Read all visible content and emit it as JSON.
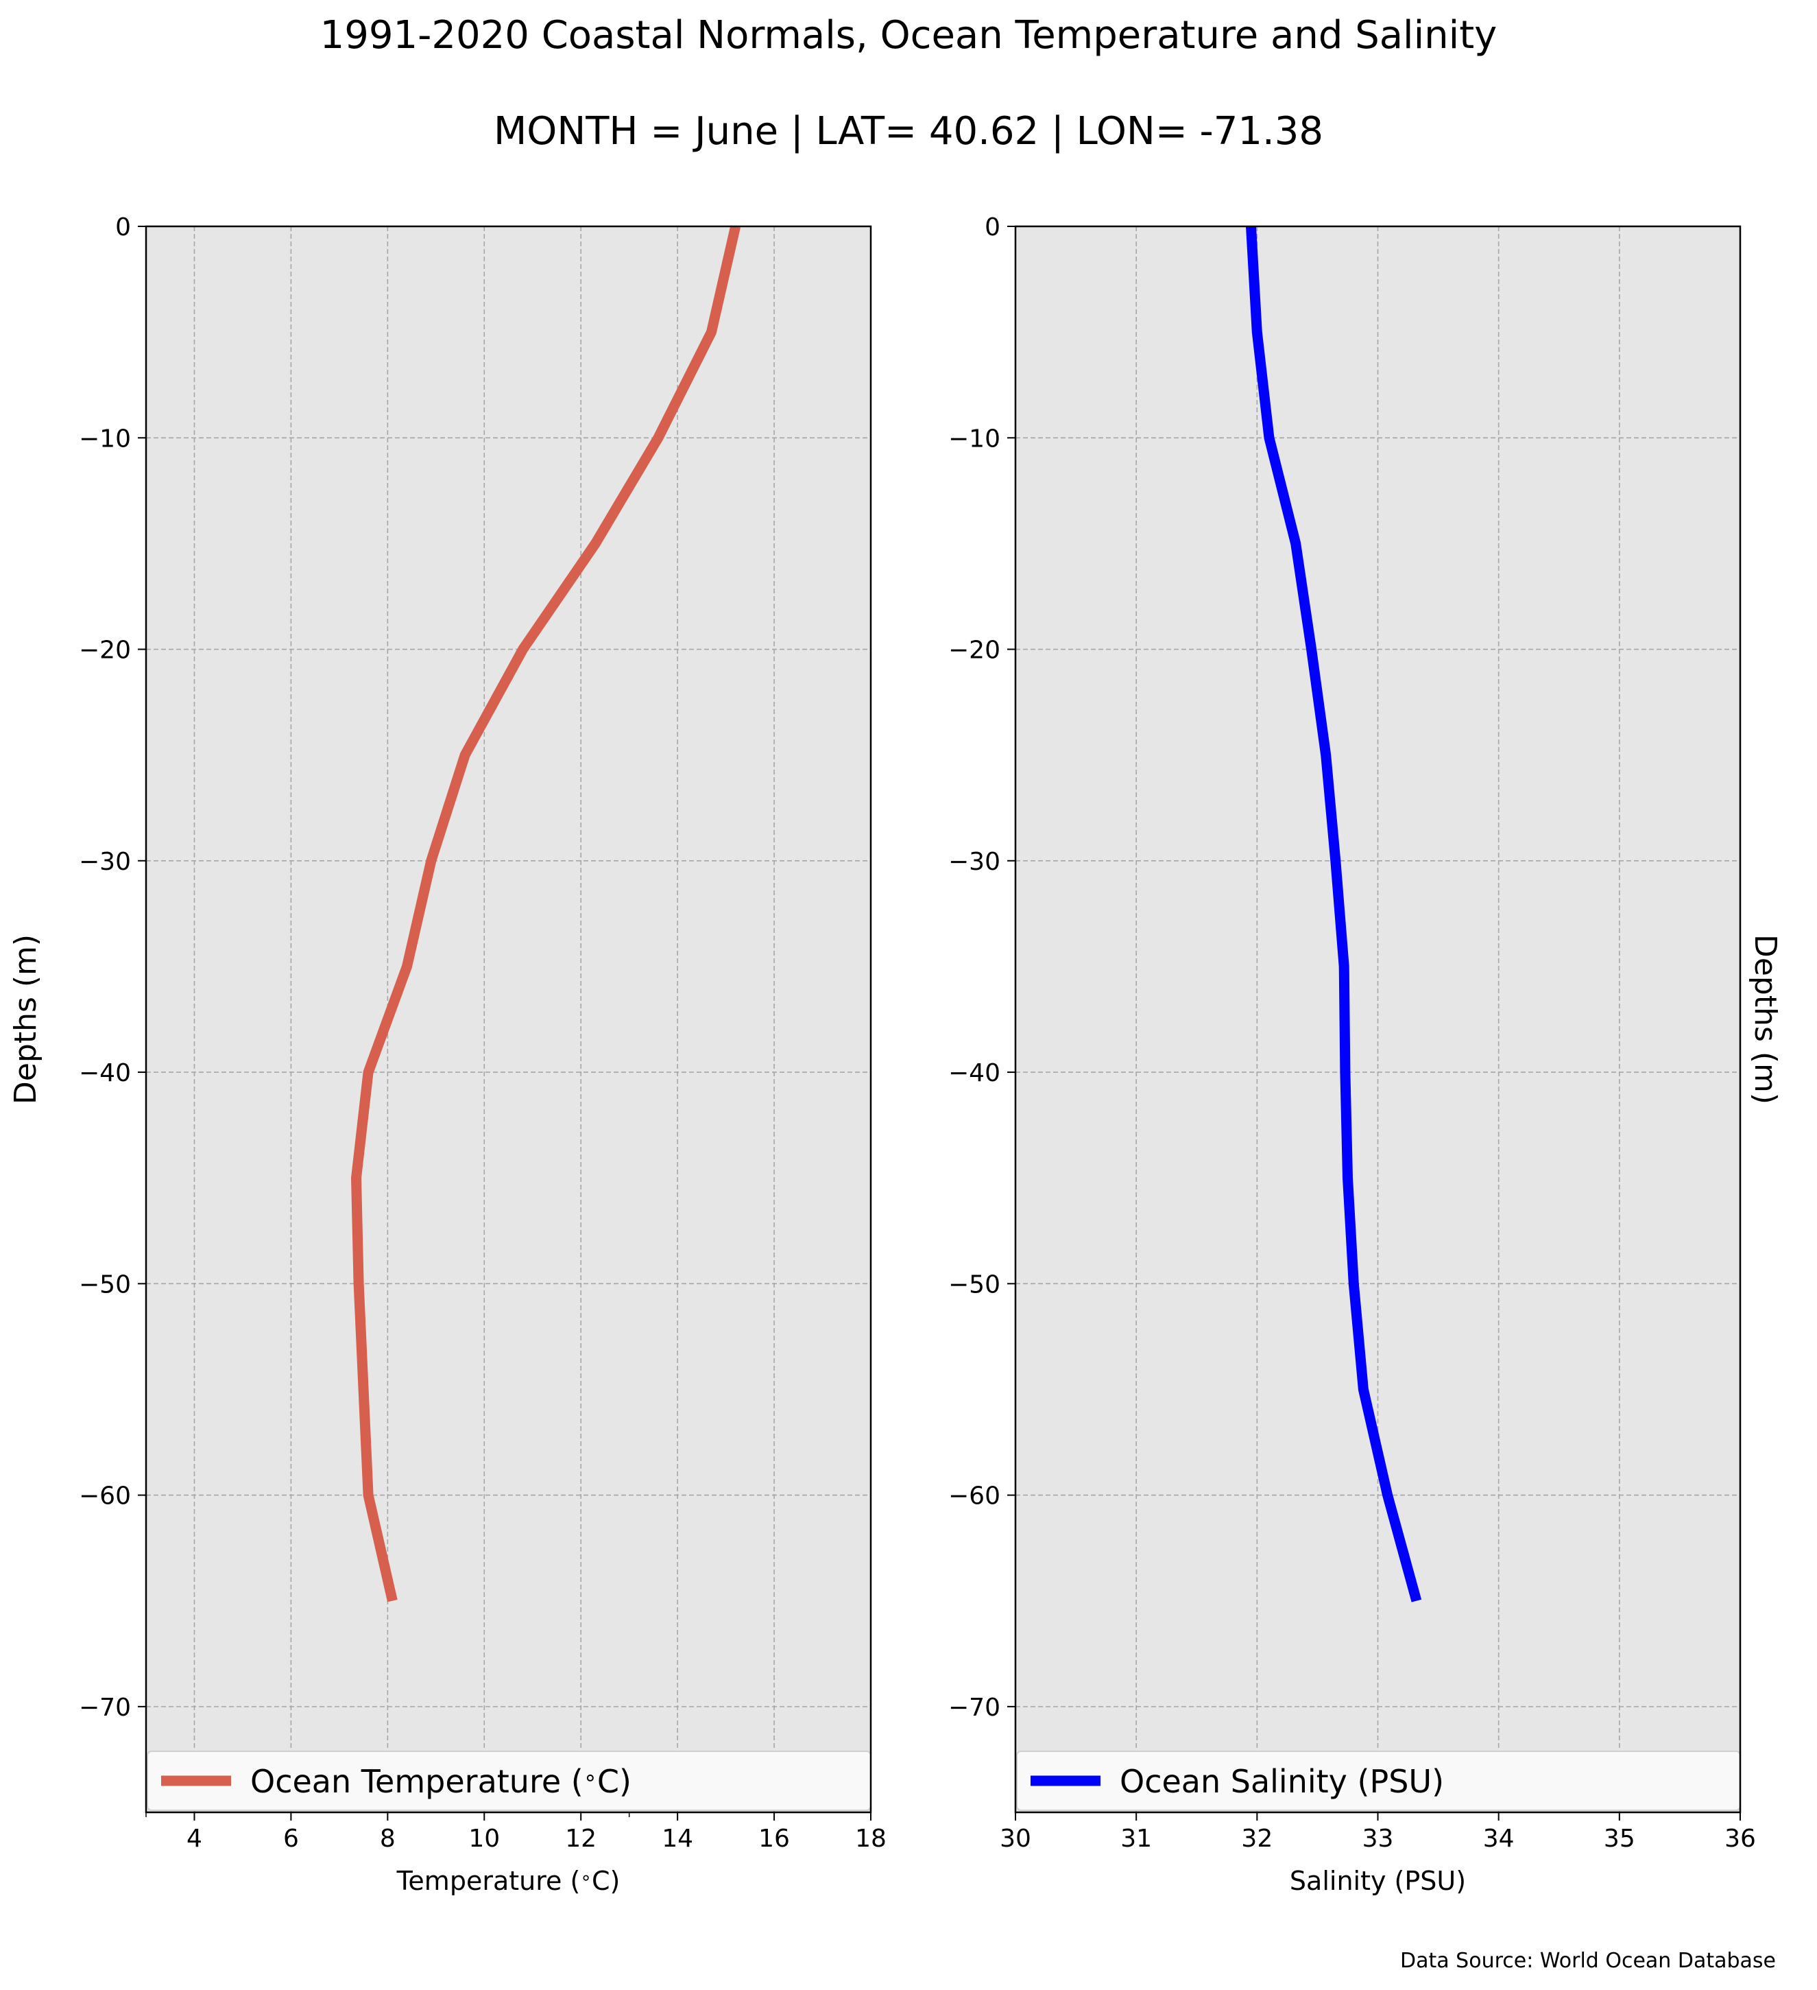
{
  "figure": {
    "title": "1991-2020 Coastal Normals, Ocean Temperature and Salinity",
    "subtitle": "MONTH = June | LAT= 40.62 | LON= -71.38",
    "source_note": "Data Source: World Ocean Database"
  },
  "colors": {
    "plot_background": "#e6e6e6",
    "grid": "#a6a6a6",
    "temperature_line": "#d75f4e",
    "salinity_line": "#0000ff"
  },
  "chart_data": [
    {
      "type": "line",
      "orientation": "vertical-profile",
      "xlabel": "Temperature ($^\\circ$C)",
      "ylabel": "Depths (m)",
      "xlim": [
        3,
        18
      ],
      "ylim": [
        -75,
        0
      ],
      "xticks": [
        4,
        6,
        8,
        10,
        12,
        14,
        16,
        18
      ],
      "xtick_labels": [
        "4",
        "6",
        "8",
        "10",
        "12",
        "14",
        "16",
        "18"
      ],
      "yticks": [
        0,
        -10,
        -20,
        -30,
        -40,
        -50,
        -60,
        -70
      ],
      "ytick_labels": [
        "0",
        "−10",
        "−20",
        "−30",
        "−40",
        "−50",
        "−60",
        "−70"
      ],
      "grid": true,
      "legend_position": "bottom",
      "series": [
        {
          "name": "Ocean Temperature ($^\\circ$C)",
          "x": [
            15.2,
            14.7,
            13.6,
            12.3,
            10.8,
            9.6,
            8.9,
            8.4,
            7.6,
            7.35,
            7.4,
            7.5,
            7.6,
            8.1
          ],
          "y": [
            0,
            -5,
            -10,
            -15,
            -20,
            -25,
            -30,
            -35,
            -40,
            -45,
            -50,
            -55,
            -60,
            -65
          ]
        }
      ]
    },
    {
      "type": "line",
      "orientation": "vertical-profile",
      "xlabel": "Salinity (PSU)",
      "ylabel": "Depths (m)",
      "xlim": [
        30,
        36
      ],
      "ylim": [
        -75,
        0
      ],
      "xticks": [
        30,
        31,
        32,
        33,
        34,
        35,
        36
      ],
      "xtick_labels": [
        "30",
        "31",
        "32",
        "33",
        "34",
        "35",
        "36"
      ],
      "yticks": [
        0,
        -10,
        -20,
        -30,
        -40,
        -50,
        -60,
        -70
      ],
      "ytick_labels": [
        "0",
        "−10",
        "−20",
        "−30",
        "−40",
        "−50",
        "−60",
        "−70"
      ],
      "grid": true,
      "legend_position": "bottom",
      "series": [
        {
          "name": "Ocean Salinity (PSU)",
          "x": [
            31.95,
            32.0,
            32.1,
            32.32,
            32.45,
            32.57,
            32.65,
            32.72,
            32.73,
            32.75,
            32.8,
            32.88,
            33.08,
            33.32
          ],
          "y": [
            0,
            -5,
            -10,
            -15,
            -20,
            -25,
            -30,
            -35,
            -40,
            -45,
            -50,
            -55,
            -60,
            -65
          ]
        }
      ]
    }
  ]
}
